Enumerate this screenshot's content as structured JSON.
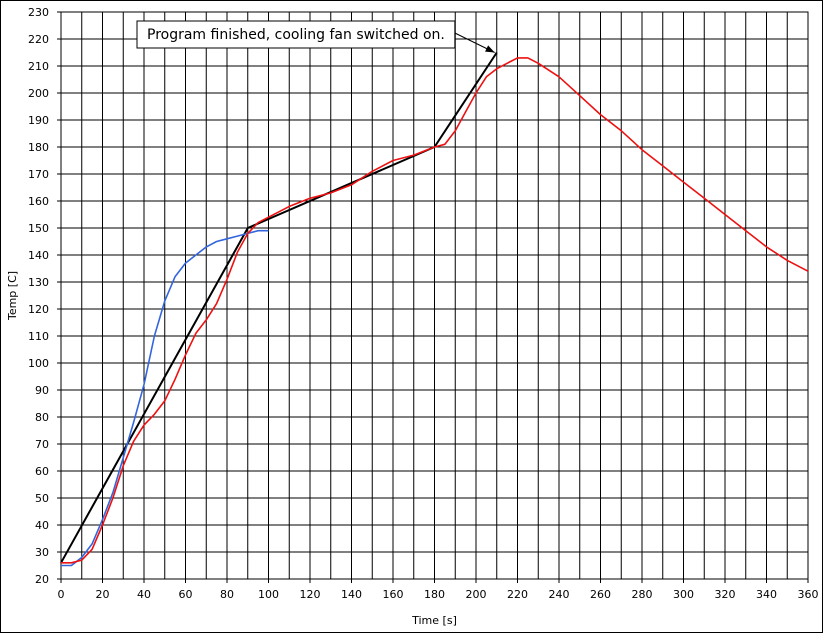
{
  "chart_data": {
    "type": "line",
    "xlabel": "Time [s]",
    "ylabel": "Temp [C]",
    "xlim": [
      0,
      360
    ],
    "ylim": [
      20,
      230
    ],
    "xticks": [
      0,
      20,
      40,
      60,
      80,
      100,
      120,
      140,
      160,
      180,
      200,
      220,
      240,
      260,
      280,
      300,
      320,
      340,
      360
    ],
    "yticks": [
      20,
      30,
      40,
      50,
      60,
      70,
      80,
      90,
      100,
      110,
      120,
      130,
      140,
      150,
      160,
      170,
      180,
      190,
      200,
      210,
      220,
      230
    ],
    "x_minor_step": 10,
    "grid": true,
    "legend": "none",
    "annotation": {
      "text": "Program finished, cooling fan switched on.",
      "arrow_to": [
        209,
        215
      ]
    },
    "series": [
      {
        "color": "#000000",
        "x": [
          0,
          90,
          180,
          210
        ],
        "y": [
          26,
          150,
          180,
          215
        ]
      },
      {
        "color": "#3366dd",
        "x": [
          0,
          5,
          10,
          15,
          20,
          25,
          30,
          35,
          40,
          45,
          50,
          55,
          60,
          65,
          70,
          75,
          80,
          85,
          90,
          95,
          100
        ],
        "y": [
          25,
          25,
          28,
          33,
          42,
          52,
          65,
          78,
          92,
          110,
          123,
          132,
          137,
          140,
          143,
          145,
          146,
          147,
          148,
          149,
          149
        ]
      },
      {
        "color": "#ee1111",
        "x": [
          0,
          5,
          10,
          15,
          20,
          25,
          30,
          35,
          40,
          45,
          50,
          55,
          60,
          65,
          70,
          75,
          80,
          85,
          90,
          95,
          100,
          110,
          120,
          130,
          140,
          150,
          160,
          170,
          180,
          185,
          190,
          195,
          200,
          205,
          210,
          215,
          220,
          225,
          230,
          240,
          250,
          260,
          270,
          280,
          290,
          300,
          310,
          320,
          330,
          340,
          350,
          360
        ],
        "y": [
          26,
          26,
          27,
          31,
          40,
          50,
          62,
          71,
          77,
          81,
          86,
          94,
          103,
          111,
          116,
          122,
          131,
          141,
          148,
          152,
          154,
          158,
          161,
          163,
          166,
          171,
          175,
          177,
          180,
          181,
          186,
          193,
          200,
          206,
          209,
          211,
          213,
          213,
          211,
          206,
          199,
          192,
          186,
          179,
          173,
          167,
          161,
          155,
          149,
          143,
          138,
          134
        ]
      }
    ]
  }
}
